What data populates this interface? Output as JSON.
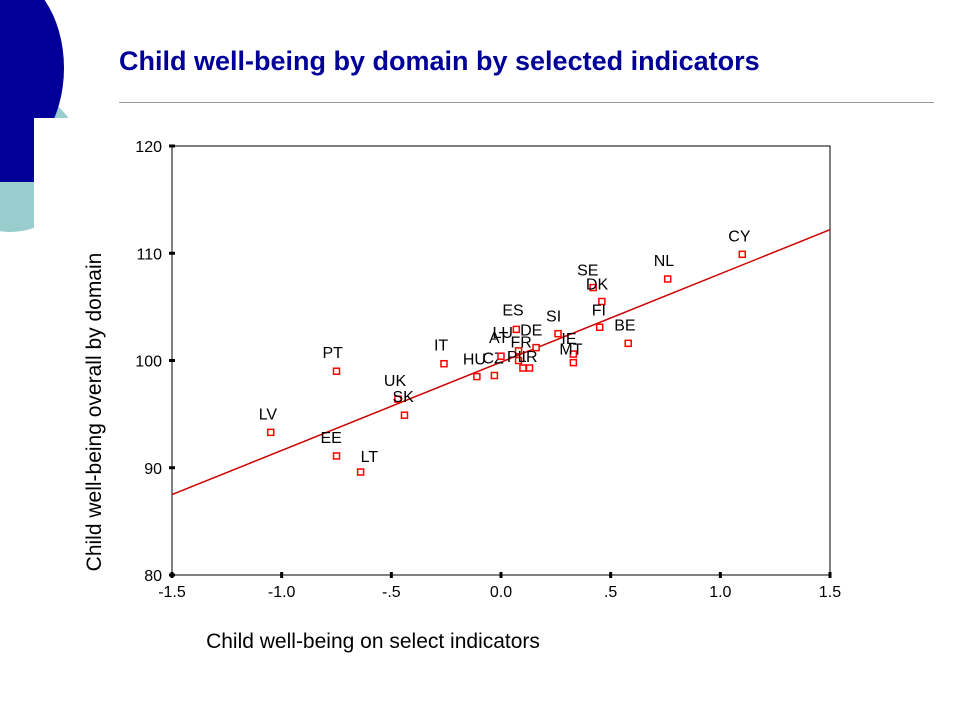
{
  "slide": {
    "title": "Child well-being by domain by selected indicators",
    "accent_color": "#000099",
    "secondary_color": "#99cccc"
  },
  "chart_data": {
    "type": "scatter",
    "title": "",
    "xlabel": "Child well-being on select indicators",
    "ylabel": "Child well-being overall by domain",
    "xlim": [
      -1.5,
      1.5
    ],
    "ylim": [
      80,
      120
    ],
    "x_ticks": [
      "-1.5",
      "-1.0",
      "-.5",
      "0.0",
      ".5",
      "1.0",
      "1.5"
    ],
    "y_ticks": [
      "80",
      "90",
      "100",
      "110",
      "120"
    ],
    "grid": false,
    "marker_color": "#ff0000",
    "line_color": "#cc0000",
    "fit_line": {
      "type": "linear",
      "from": [
        -1.5,
        87.5
      ],
      "to": [
        1.5,
        112.2
      ]
    },
    "points": [
      {
        "label": "LV",
        "x": -1.05,
        "y": 93.3
      },
      {
        "label": "PT",
        "x": -0.75,
        "y": 99.0
      },
      {
        "label": "EE",
        "x": -0.75,
        "y": 91.1
      },
      {
        "label": "LT",
        "x": -0.64,
        "y": 89.6
      },
      {
        "label": "UK",
        "x": -0.47,
        "y": 96.4
      },
      {
        "label": "SK",
        "x": -0.44,
        "y": 94.9
      },
      {
        "label": "IT",
        "x": -0.26,
        "y": 99.7
      },
      {
        "label": "HU",
        "x": -0.11,
        "y": 98.5
      },
      {
        "label": "CZ",
        "x": -0.03,
        "y": 98.6
      },
      {
        "label": "AT",
        "x": 0.0,
        "y": 100.4
      },
      {
        "label": "ES",
        "x": 0.07,
        "y": 102.9
      },
      {
        "label": "LU",
        "x": 0.08,
        "y": 100.9
      },
      {
        "label": "FR",
        "x": 0.08,
        "y": 100.0
      },
      {
        "label": "PL",
        "x": 0.1,
        "y": 99.3
      },
      {
        "label": "IR",
        "x": 0.13,
        "y": 99.3
      },
      {
        "label": "DE",
        "x": 0.16,
        "y": 101.2
      },
      {
        "label": "SI",
        "x": 0.26,
        "y": 102.5
      },
      {
        "label": "IE",
        "x": 0.33,
        "y": 100.6
      },
      {
        "label": "MT",
        "x": 0.33,
        "y": 99.8
      },
      {
        "label": "SE",
        "x": 0.42,
        "y": 106.8
      },
      {
        "label": "DK",
        "x": 0.46,
        "y": 105.5
      },
      {
        "label": "FI",
        "x": 0.45,
        "y": 103.1
      },
      {
        "label": "BE",
        "x": 0.58,
        "y": 101.6
      },
      {
        "label": "NL",
        "x": 0.76,
        "y": 107.6
      },
      {
        "label": "CY",
        "x": 1.1,
        "y": 109.9
      }
    ]
  }
}
